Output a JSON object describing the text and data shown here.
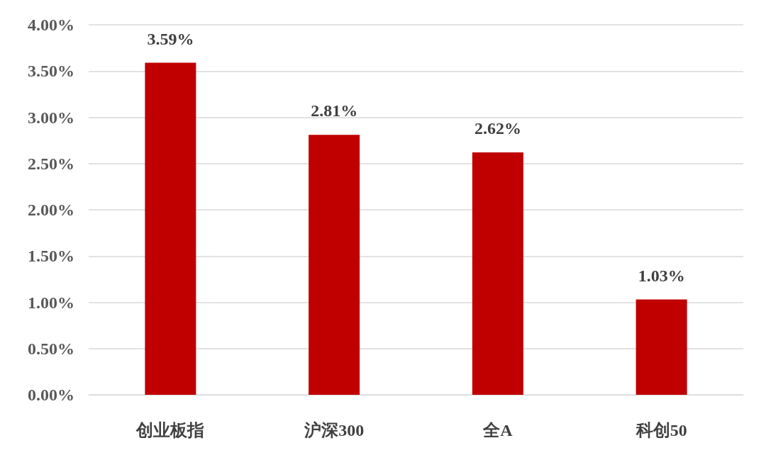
{
  "chart_data": {
    "type": "bar",
    "categories": [
      "创业板指",
      "沪深300",
      "全A",
      "科创50"
    ],
    "values": [
      3.59,
      2.81,
      2.62,
      1.03
    ],
    "value_labels": [
      "3.59%",
      "2.81%",
      "2.62%",
      "1.03%"
    ],
    "color": "#c00000",
    "ylim": [
      0,
      4
    ],
    "yticks": [
      {
        "value": 0,
        "label": "0.00%"
      },
      {
        "value": 0.5,
        "label": "0.50%"
      },
      {
        "value": 1,
        "label": "1.00%"
      },
      {
        "value": 1.5,
        "label": "1.50%"
      },
      {
        "value": 2,
        "label": "2.00%"
      },
      {
        "value": 2.5,
        "label": "2.50%"
      },
      {
        "value": 3,
        "label": "3.00%"
      },
      {
        "value": 3.5,
        "label": "3.50%"
      },
      {
        "value": 4,
        "label": "4.00%"
      }
    ],
    "grid": "y"
  }
}
